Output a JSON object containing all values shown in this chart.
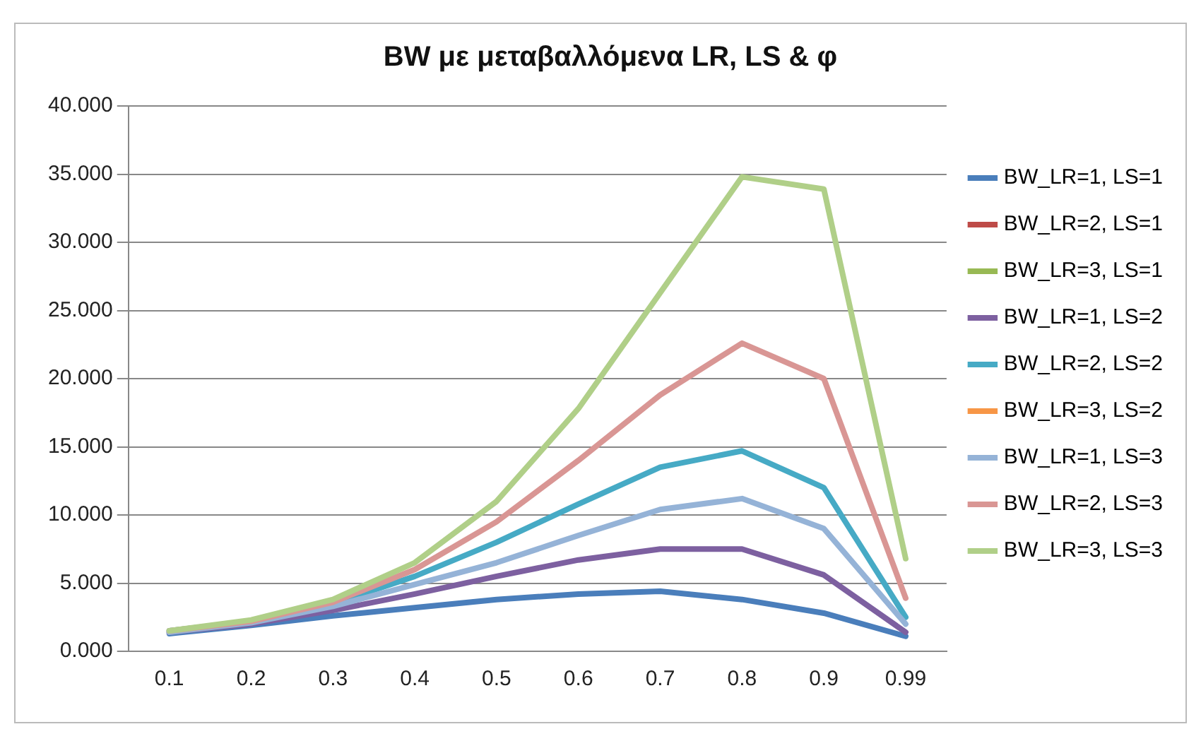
{
  "chart_data": {
    "type": "line",
    "title": "BW με μεταβαλλόμενα LR, LS & φ",
    "categories": [
      "0.1",
      "0.2",
      "0.3",
      "0.4",
      "0.5",
      "0.6",
      "0.7",
      "0.8",
      "0.9",
      "0.99"
    ],
    "series": [
      {
        "name": "BW_LR=1, LS=1",
        "color": "#4a7ebb",
        "values": [
          1.3,
          1.9,
          2.6,
          3.2,
          3.8,
          4.2,
          4.4,
          3.8,
          2.8,
          1.1
        ]
      },
      {
        "name": "BW_LR=2, LS=1",
        "color": "#be4b48",
        "values": [
          null,
          null,
          null,
          null,
          null,
          null,
          null,
          null,
          null,
          null
        ]
      },
      {
        "name": "BW_LR=3, LS=1",
        "color": "#98b954",
        "values": [
          null,
          null,
          null,
          null,
          null,
          null,
          null,
          null,
          null,
          null
        ]
      },
      {
        "name": "BW_LR=1, LS=2",
        "color": "#7d60a0",
        "values": [
          1.4,
          2.0,
          3.0,
          4.2,
          5.5,
          6.7,
          7.5,
          7.5,
          5.6,
          1.4
        ]
      },
      {
        "name": "BW_LR=2, LS=2",
        "color": "#46aac5",
        "values": [
          1.5,
          2.2,
          3.5,
          5.5,
          8.0,
          10.8,
          13.5,
          14.7,
          12.0,
          2.5
        ]
      },
      {
        "name": "BW_LR=3, LS=2",
        "color": "#f79646",
        "values": [
          null,
          null,
          null,
          null,
          null,
          null,
          null,
          null,
          null,
          null
        ]
      },
      {
        "name": "BW_LR=1, LS=3",
        "color": "#95b3d7",
        "values": [
          1.4,
          2.1,
          3.3,
          4.9,
          6.5,
          8.5,
          10.4,
          11.2,
          9.0,
          2.0
        ]
      },
      {
        "name": "BW_LR=2, LS=3",
        "color": "#d99694",
        "values": [
          1.5,
          2.2,
          3.6,
          6.0,
          9.5,
          14.0,
          18.8,
          22.6,
          20.0,
          3.9
        ]
      },
      {
        "name": "BW_LR=3, LS=3",
        "color": "#b0cf88",
        "values": [
          1.5,
          2.3,
          3.8,
          6.5,
          11.0,
          17.8,
          26.3,
          34.8,
          33.9,
          6.8
        ]
      }
    ],
    "ylim": [
      0,
      40
    ],
    "yticks": [
      {
        "value": 0,
        "label": "0.000"
      },
      {
        "value": 5,
        "label": "5.000"
      },
      {
        "value": 10,
        "label": "10.000"
      },
      {
        "value": 15,
        "label": "15.000"
      },
      {
        "value": 20,
        "label": "20.000"
      },
      {
        "value": 25,
        "label": "25.000"
      },
      {
        "value": 30,
        "label": "30.000"
      },
      {
        "value": 35,
        "label": "35.000"
      },
      {
        "value": 40,
        "label": "40.000"
      }
    ],
    "grid": "y",
    "legend": "right",
    "marker": "none",
    "line_style": "solid"
  }
}
